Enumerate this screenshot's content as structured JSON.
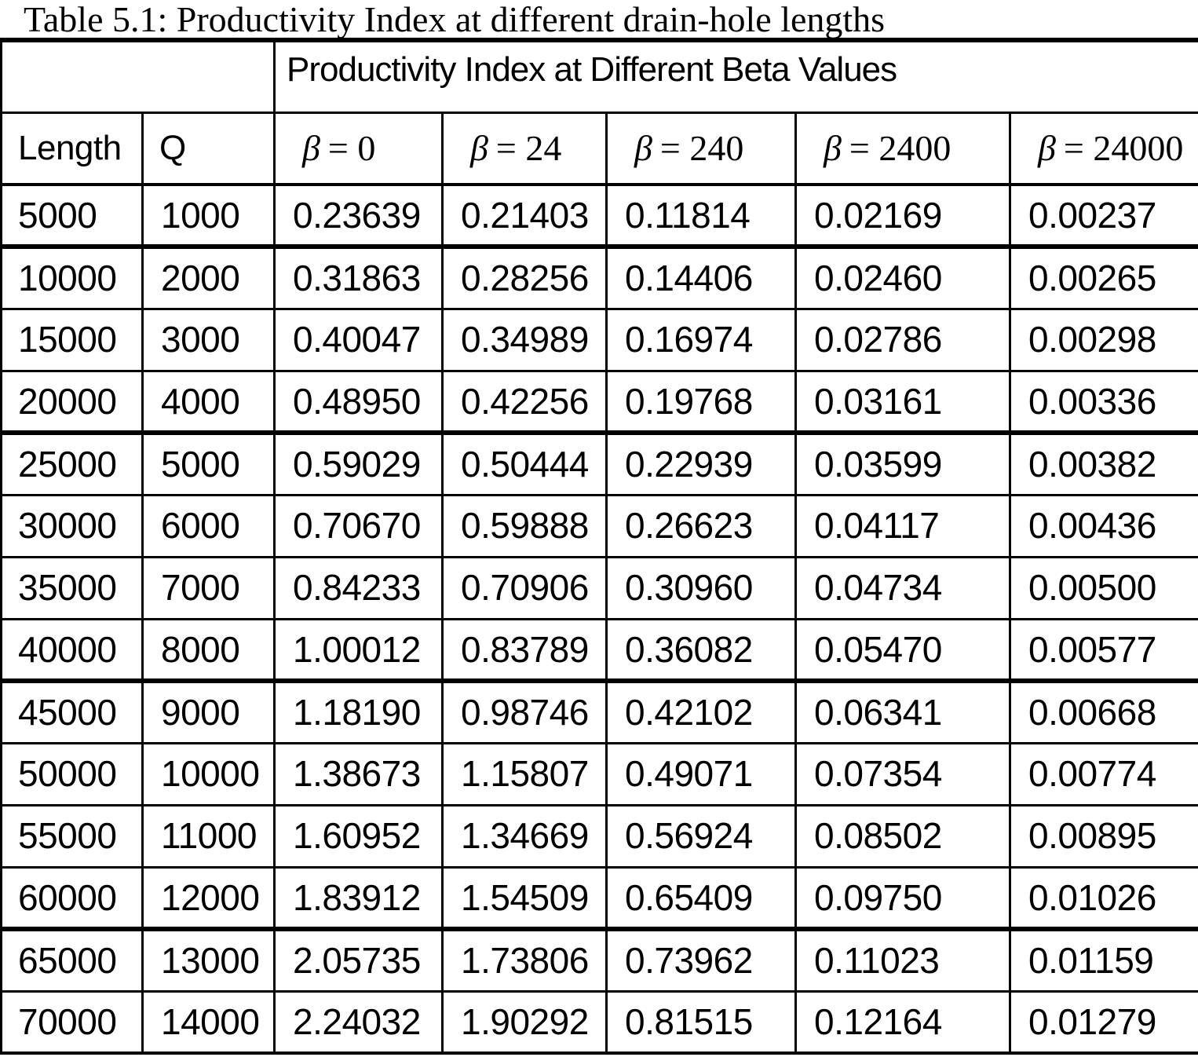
{
  "page": {
    "title": "Table 5.1: Productivity Index at different drain-hole lengths"
  },
  "table": {
    "group_header": "Productivity Index at Different Beta Values",
    "columns": [
      {
        "label": "Length"
      },
      {
        "label": "Q"
      },
      {
        "symbol": "β",
        "eq": "= 0"
      },
      {
        "symbol": "β",
        "eq": "= 24"
      },
      {
        "symbol": "β",
        "eq": "= 240"
      },
      {
        "symbol": "β",
        "eq": "= 2400"
      },
      {
        "symbol": "β",
        "eq": "= 24000"
      }
    ],
    "rows": [
      [
        "5000",
        "1000",
        "0.23639",
        "0.21403",
        "0.11814",
        "0.02169",
        "0.00237"
      ],
      [
        "10000",
        "2000",
        "0.31863",
        "0.28256",
        "0.14406",
        "0.02460",
        "0.00265"
      ],
      [
        "15000",
        "3000",
        "0.40047",
        "0.34989",
        "0.16974",
        "0.02786",
        "0.00298"
      ],
      [
        "20000",
        "4000",
        "0.48950",
        "0.42256",
        "0.19768",
        "0.03161",
        "0.00336"
      ],
      [
        "25000",
        "5000",
        "0.59029",
        "0.50444",
        "0.22939",
        "0.03599",
        "0.00382"
      ],
      [
        "30000",
        "6000",
        "0.70670",
        "0.59888",
        "0.26623",
        "0.04117",
        "0.00436"
      ],
      [
        "35000",
        "7000",
        "0.84233",
        "0.70906",
        "0.30960",
        "0.04734",
        "0.00500"
      ],
      [
        "40000",
        "8000",
        "1.00012",
        "0.83789",
        "0.36082",
        "0.05470",
        "0.00577"
      ],
      [
        "45000",
        "9000",
        "1.18190",
        "0.98746",
        "0.42102",
        "0.06341",
        "0.00668"
      ],
      [
        "50000",
        "10000",
        "1.38673",
        "1.15807",
        "0.49071",
        "0.07354",
        "0.00774"
      ],
      [
        "55000",
        "11000",
        "1.60952",
        "1.34669",
        "0.56924",
        "0.08502",
        "0.00895"
      ],
      [
        "60000",
        "12000",
        "1.83912",
        "1.54509",
        "0.65409",
        "0.09750",
        "0.01026"
      ],
      [
        "65000",
        "13000",
        "2.05735",
        "1.73806",
        "0.73962",
        "0.11023",
        "0.01159"
      ],
      [
        "70000",
        "14000",
        "2.24032",
        "1.90292",
        "0.81515",
        "0.12164",
        "0.01279"
      ]
    ]
  }
}
